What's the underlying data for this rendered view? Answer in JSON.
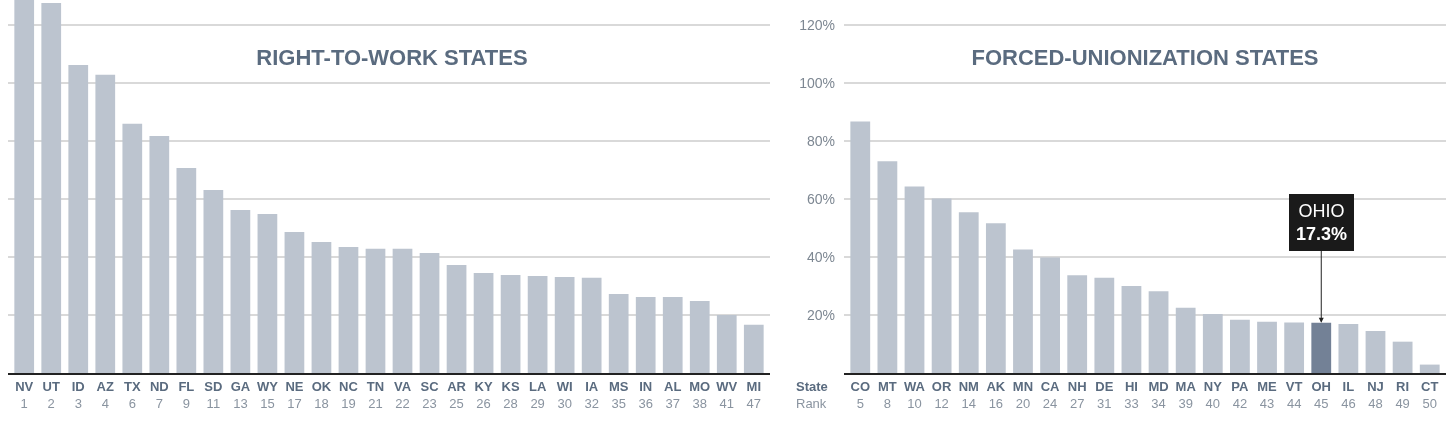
{
  "chart_data": [
    {
      "type": "bar",
      "title": "RIGHT-TO-WORK STATES",
      "categories": [
        "NV\n1",
        "UT\n2",
        "ID\n3",
        "AZ\n4",
        "TX\n6",
        "ND\n7",
        "FL\n9",
        "SD\n11",
        "GA\n13",
        "WY\n15",
        "NE\n17",
        "OK\n18",
        "NC\n19",
        "TN\n21",
        "VA\n22",
        "SC\n23",
        "AR\n25",
        "KY\n26",
        "KS\n28",
        "LA\n29",
        "WI\n30",
        "IA\n32",
        "MS\n35",
        "IN\n36",
        "AL\n37",
        "MO\n38",
        "WV\n41",
        "MI\n47"
      ],
      "series": [
        {
          "color": "#bcc4cf",
          "values": [
            128.6,
            127.6,
            106.2,
            102.8,
            85.9,
            81.7,
            70.7,
            63.1,
            56.2,
            54.8,
            48.6,
            45.2,
            43.4,
            42.8,
            42.8,
            41.4,
            37.2,
            34.5,
            33.8,
            33.4,
            33.1,
            32.8,
            27.2,
            26.2,
            26.2,
            24.8,
            20.0,
            16.6
          ]
        }
      ],
      "ylim": [
        0,
        128.6
      ],
      "yticks": [
        20,
        40,
        60,
        80,
        100,
        120
      ],
      "grid": "y",
      "tick_labels": "x"
    },
    {
      "type": "bar",
      "title": "FORCED-UNIONIZATION STATES",
      "categories": [
        "CO\n5",
        "MT\n8",
        "WA\n10",
        "OR\n12",
        "NM\n14",
        "AK\n16",
        "MN\n20",
        "CA\n24",
        "NH\n27",
        "DE\n31",
        "HI\n33",
        "MD\n34",
        "MA\n39",
        "NY\n40",
        "PA\n42",
        "ME\n43",
        "VT\n44",
        "OH\n45",
        "IL\n46",
        "NJ\n48",
        "RI\n49",
        "CT\n50"
      ],
      "series": [
        {
          "colors": [
            "#bcc4cf",
            "#bcc4cf",
            "#bcc4cf",
            "#bcc4cf",
            "#bcc4cf",
            "#bcc4cf",
            "#bcc4cf",
            "#bcc4cf",
            "#bcc4cf",
            "#bcc4cf",
            "#bcc4cf",
            "#bcc4cf",
            "#bcc4cf",
            "#bcc4cf",
            "#bcc4cf",
            "#bcc4cf",
            "#bcc4cf",
            "#738196",
            "#bcc4cf",
            "#bcc4cf",
            "#bcc4cf",
            "#bcc4cf"
          ],
          "values": [
            86.7,
            73.0,
            64.3,
            60.2,
            55.4,
            51.6,
            42.6,
            39.8,
            33.7,
            32.8,
            30.0,
            28.2,
            22.5,
            20.3,
            18.4,
            17.7,
            17.4,
            17.3,
            16.9,
            14.5,
            10.8,
            2.9
          ]
        }
      ],
      "ylim": [
        0,
        128.6
      ],
      "yticks": [
        {
          "value": 20,
          "label": "20%"
        },
        {
          "value": 40,
          "label": "40%"
        },
        {
          "value": 60,
          "label": "60%"
        },
        {
          "value": 80,
          "label": "80%"
        },
        {
          "value": 100,
          "label": "100%"
        },
        {
          "value": 120,
          "label": "120%"
        }
      ],
      "grid": "y",
      "annotations": [
        "State\nRank",
        {
          "text": "OHIO\n17.3%",
          "x": "OH\n45",
          "y": 17.3
        }
      ]
    }
  ]
}
